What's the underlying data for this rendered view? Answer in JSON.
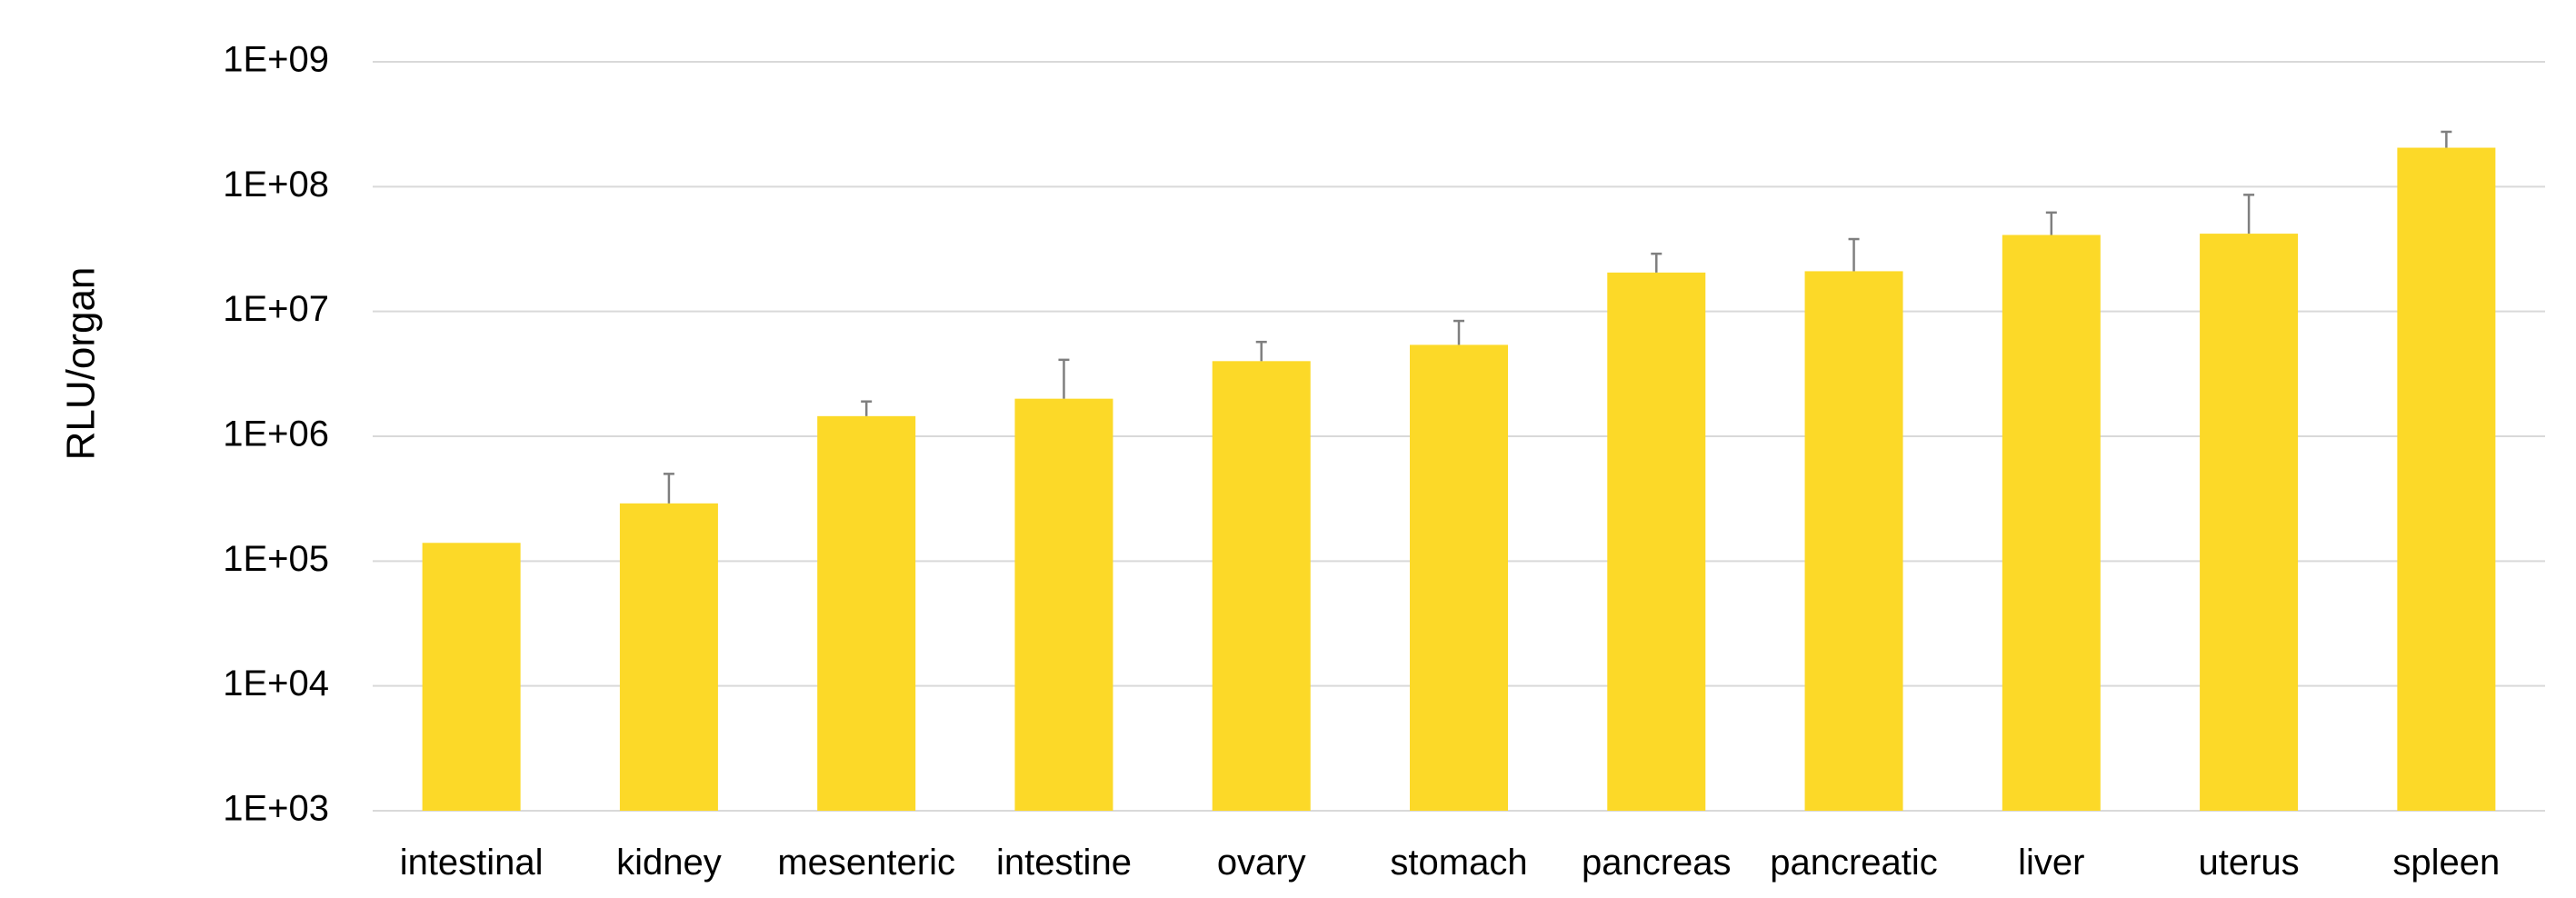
{
  "chart_data": {
    "type": "bar",
    "title": "",
    "xlabel": "",
    "ylabel": "RLU/organ",
    "yscale": "log",
    "ylim": [
      1000,
      1000000000
    ],
    "yticks": [
      1000,
      10000,
      100000,
      1000000,
      10000000,
      100000000,
      1000000000
    ],
    "ytick_labels": [
      "1E+03",
      "1E+04",
      "1E+05",
      "1E+06",
      "1E+07",
      "1E+08",
      "1E+09"
    ],
    "grid": true,
    "legend": "none",
    "categories": [
      "intestinal",
      "kidney",
      "mesenteric",
      "intestine",
      "ovary",
      "stomach",
      "pancreas",
      "pancreatic",
      "liver",
      "uterus",
      "spleen"
    ],
    "values": [
      140000,
      290000,
      1450000,
      2000000,
      4000000,
      5400000,
      20500000,
      21000000,
      41000000,
      42000000,
      205000000
    ],
    "error_upper": [
      null,
      500000,
      1900000,
      4100000,
      5700000,
      8400000,
      29000000,
      38000000,
      62000000,
      86000000,
      275000000
    ],
    "colors": {
      "bar": "#FCD928",
      "grid": "#D9D9D9",
      "error_bar": "#7F7F7F",
      "text": "#000000"
    }
  }
}
